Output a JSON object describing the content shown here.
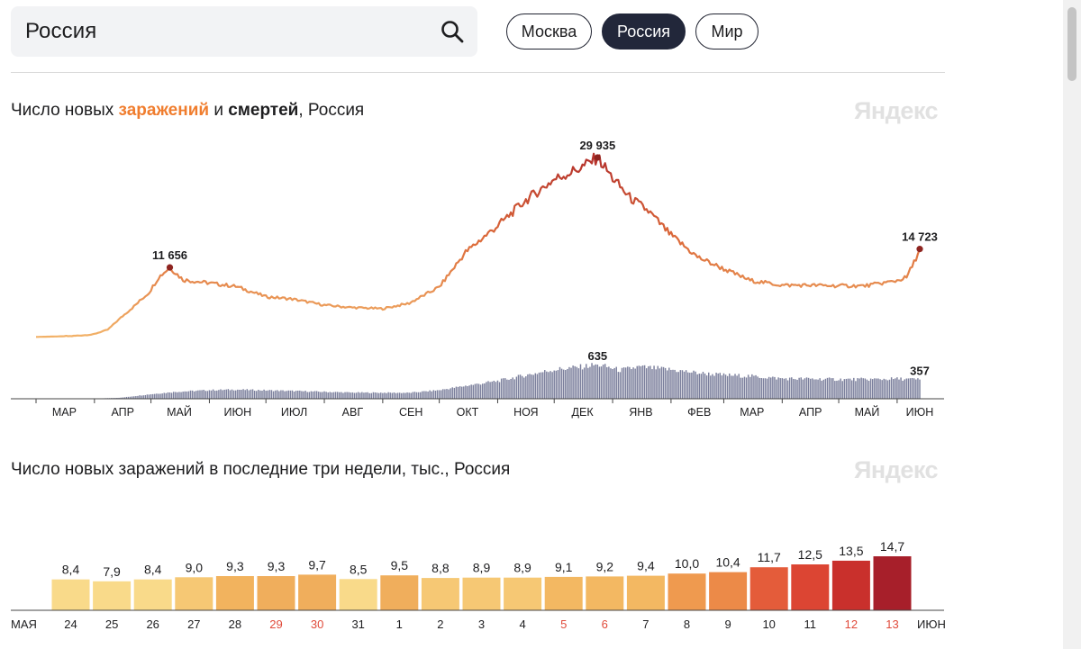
{
  "search": {
    "value": "Россия"
  },
  "region_tabs": [
    {
      "label": "Москва",
      "active": false
    },
    {
      "label": "Россия",
      "active": true
    },
    {
      "label": "Мир",
      "active": false
    }
  ],
  "chart1": {
    "title_prefix": "Число новых ",
    "title_infections": "заражений",
    "title_mid": " и ",
    "title_deaths": "смертей",
    "title_suffix": ", Россия",
    "watermark": "Яндекс",
    "colors": {
      "infections_low": "#f2b268",
      "infections_high": "#b5322c",
      "deaths": "#7b7f9c",
      "marker": "#8e2420"
    }
  },
  "chart2": {
    "title": "Число новых заражений в последние три недели, тыс., Россия",
    "watermark": "Яндекс",
    "start_month_label": "МАЯ",
    "end_month_label": "ИЮН"
  },
  "chart_data": [
    {
      "type": "line",
      "series": [
        {
          "name": "заражений",
          "x_start": "2020-03-01",
          "x_end": "2021-06-13",
          "anchors": [
            [
              "2020-03-01",
              100
            ],
            [
              "2020-03-20",
              250
            ],
            [
              "2020-03-31",
              500
            ],
            [
              "2020-04-08",
              1300
            ],
            [
              "2020-04-15",
              3300
            ],
            [
              "2020-04-22",
              5200
            ],
            [
              "2020-04-30",
              7500
            ],
            [
              "2020-05-05",
              10000
            ],
            [
              "2020-05-11",
              11656
            ],
            [
              "2020-05-18",
              9600
            ],
            [
              "2020-05-31",
              9100
            ],
            [
              "2020-06-15",
              8500
            ],
            [
              "2020-07-01",
              6800
            ],
            [
              "2020-07-15",
              6400
            ],
            [
              "2020-08-01",
              5400
            ],
            [
              "2020-08-15",
              5000
            ],
            [
              "2020-09-01",
              4800
            ],
            [
              "2020-09-15",
              5700
            ],
            [
              "2020-10-01",
              8400
            ],
            [
              "2020-10-15",
              14200
            ],
            [
              "2020-11-01",
              18600
            ],
            [
              "2020-11-15",
              22600
            ],
            [
              "2020-12-01",
              26300
            ],
            [
              "2020-12-15",
              28200
            ],
            [
              "2020-12-24",
              29935
            ],
            [
              "2021-01-01",
              26500
            ],
            [
              "2021-01-10",
              23300
            ],
            [
              "2021-01-20",
              21000
            ],
            [
              "2021-02-01",
              17000
            ],
            [
              "2021-02-15",
              13400
            ],
            [
              "2021-03-01",
              11400
            ],
            [
              "2021-03-15",
              9500
            ],
            [
              "2021-04-01",
              8700
            ],
            [
              "2021-04-15",
              8700
            ],
            [
              "2021-05-01",
              8600
            ],
            [
              "2021-05-15",
              8600
            ],
            [
              "2021-05-31",
              9400
            ],
            [
              "2021-06-06",
              10000
            ],
            [
              "2021-06-10",
              12500
            ],
            [
              "2021-06-13",
              14723
            ]
          ]
        },
        {
          "name": "смертей",
          "x_start": "2020-03-01",
          "x_end": "2021-06-13",
          "anchors": [
            [
              "2020-03-01",
              0
            ],
            [
              "2020-04-01",
              3
            ],
            [
              "2020-04-15",
              20
            ],
            [
              "2020-05-01",
              85
            ],
            [
              "2020-05-15",
              130
            ],
            [
              "2020-06-01",
              160
            ],
            [
              "2020-06-15",
              170
            ],
            [
              "2020-07-15",
              145
            ],
            [
              "2020-08-15",
              115
            ],
            [
              "2020-09-15",
              110
            ],
            [
              "2020-10-01",
              160
            ],
            [
              "2020-10-15",
              240
            ],
            [
              "2020-11-01",
              330
            ],
            [
              "2020-11-15",
              430
            ],
            [
              "2020-12-01",
              540
            ],
            [
              "2020-12-15",
              590
            ],
            [
              "2020-12-24",
              635
            ],
            [
              "2021-01-05",
              530
            ],
            [
              "2021-01-15",
              590
            ],
            [
              "2021-02-01",
              540
            ],
            [
              "2021-02-15",
              480
            ],
            [
              "2021-03-01",
              440
            ],
            [
              "2021-03-15",
              420
            ],
            [
              "2021-04-01",
              375
            ],
            [
              "2021-04-15",
              370
            ],
            [
              "2021-05-01",
              360
            ],
            [
              "2021-05-15",
              360
            ],
            [
              "2021-06-01",
              370
            ],
            [
              "2021-06-13",
              357
            ]
          ]
        }
      ],
      "annotations": [
        {
          "series": "заражений",
          "x": "2020-05-11",
          "y": 11656,
          "label": "11 656"
        },
        {
          "series": "заражений",
          "x": "2020-12-24",
          "y": 29935,
          "label": "29 935"
        },
        {
          "series": "заражений",
          "x": "2021-06-13",
          "y": 14723,
          "label": "14 723"
        },
        {
          "series": "смертей",
          "x": "2020-12-24",
          "y": 635,
          "label": "635"
        },
        {
          "series": "смертей",
          "x": "2021-06-13",
          "y": 357,
          "label": "357"
        }
      ],
      "x_tick_labels": [
        "МАР",
        "АПР",
        "МАЙ",
        "ИЮН",
        "ИЮЛ",
        "АВГ",
        "СЕН",
        "ОКТ",
        "НОЯ",
        "ДЕК",
        "ЯНВ",
        "ФЕВ",
        "МАР",
        "АПР",
        "МАЙ",
        "ИЮН"
      ]
    },
    {
      "type": "bar",
      "categories": [
        "24",
        "25",
        "26",
        "27",
        "28",
        "29",
        "30",
        "31",
        "1",
        "2",
        "3",
        "4",
        "5",
        "6",
        "7",
        "8",
        "9",
        "10",
        "11",
        "12",
        "13"
      ],
      "values": [
        8.4,
        7.9,
        8.4,
        9.0,
        9.3,
        9.3,
        9.7,
        8.5,
        9.5,
        8.8,
        8.9,
        8.9,
        9.1,
        9.2,
        9.4,
        10.0,
        10.4,
        11.7,
        12.5,
        13.5,
        14.7
      ],
      "value_labels": [
        "8,4",
        "7,9",
        "8,4",
        "9,0",
        "9,3",
        "9,3",
        "9,7",
        "8,5",
        "9,5",
        "8,8",
        "8,9",
        "8,9",
        "9,1",
        "9,2",
        "9,4",
        "10,0",
        "10,4",
        "11,7",
        "12,5",
        "13,5",
        "14,7"
      ],
      "weekend_categories": [
        "29",
        "30",
        "5",
        "6",
        "12",
        "13"
      ],
      "bar_colors": [
        "#f9da8a",
        "#f9da8a",
        "#f9da8a",
        "#f6c874",
        "#f2b35e",
        "#f0ae5c",
        "#f0ae5c",
        "#f9da8a",
        "#f0ae5c",
        "#f6c874",
        "#f6c874",
        "#f6c874",
        "#f3b862",
        "#f3b862",
        "#f3b862",
        "#ef9a4f",
        "#ec8a48",
        "#e45c3a",
        "#dc4533",
        "#c9302c",
        "#a71f2a"
      ],
      "weekend_label_color": "#e04a3a"
    }
  ]
}
